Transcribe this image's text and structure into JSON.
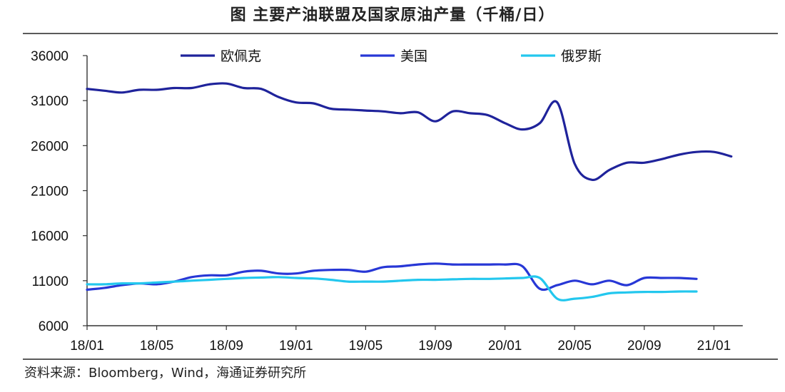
{
  "header": {
    "title": "图  主要产油联盟及国家原油产量（千桶/日）"
  },
  "footer": {
    "source": "资料来源：Bloomberg，Wind，海通证券研究所"
  },
  "chart_data": {
    "type": "line",
    "title": "图  主要产油联盟及国家原油产量（千桶/日）",
    "xlabel": "",
    "ylabel": "",
    "ylim": [
      6000,
      36000
    ],
    "yticks": [
      6000,
      11000,
      16000,
      21000,
      26000,
      31000,
      36000
    ],
    "x_tick_labels": [
      "18/01",
      "18/05",
      "18/09",
      "19/01",
      "19/05",
      "19/09",
      "20/01",
      "20/05",
      "20/09",
      "21/01"
    ],
    "x_start": "18/01",
    "x_end": "21/02",
    "grid": false,
    "legend_position": "top",
    "colors": {
      "欧佩克": "#1f239b",
      "美国": "#2737d6",
      "俄罗斯": "#23c7ee"
    },
    "series": [
      {
        "name": "欧佩克",
        "x": [
          "18/01",
          "18/02",
          "18/03",
          "18/04",
          "18/05",
          "18/06",
          "18/07",
          "18/08",
          "18/09",
          "18/10",
          "18/11",
          "18/12",
          "19/01",
          "19/02",
          "19/03",
          "19/04",
          "19/05",
          "19/06",
          "19/07",
          "19/08",
          "19/09",
          "19/10",
          "19/11",
          "19/12",
          "20/01",
          "20/02",
          "20/03",
          "20/04",
          "20/05",
          "20/06",
          "20/07",
          "20/08",
          "20/09",
          "20/10",
          "20/11",
          "20/12",
          "21/01",
          "21/02"
        ],
        "values": [
          32300,
          32100,
          31900,
          32200,
          32200,
          32400,
          32400,
          32800,
          32900,
          32400,
          32300,
          31400,
          30800,
          30700,
          30100,
          30000,
          29900,
          29800,
          29600,
          29700,
          28700,
          29800,
          29600,
          29400,
          28500,
          27800,
          28500,
          30800,
          24000,
          22200,
          23300,
          24100,
          24100,
          24500,
          25000,
          25300,
          25300,
          24800
        ]
      },
      {
        "name": "美国",
        "x": [
          "18/01",
          "18/02",
          "18/03",
          "18/04",
          "18/05",
          "18/06",
          "18/07",
          "18/08",
          "18/09",
          "18/10",
          "18/11",
          "18/12",
          "19/01",
          "19/02",
          "19/03",
          "19/04",
          "19/05",
          "19/06",
          "19/07",
          "19/08",
          "19/09",
          "19/10",
          "19/11",
          "19/12",
          "20/01",
          "20/02",
          "20/03",
          "20/04",
          "20/05",
          "20/06",
          "20/07",
          "20/08",
          "20/09",
          "20/10",
          "20/11",
          "20/12"
        ],
        "values": [
          10000,
          10200,
          10500,
          10700,
          10600,
          10900,
          11400,
          11600,
          11600,
          12000,
          12100,
          11800,
          11800,
          12100,
          12200,
          12200,
          12000,
          12500,
          12600,
          12800,
          12900,
          12800,
          12800,
          12800,
          12800,
          12600,
          10100,
          10500,
          11000,
          10600,
          11000,
          10500,
          11300,
          11300,
          11300,
          11200
        ]
      },
      {
        "name": "俄罗斯",
        "x": [
          "18/01",
          "18/02",
          "18/03",
          "18/04",
          "18/05",
          "18/06",
          "18/07",
          "18/08",
          "18/09",
          "18/10",
          "18/11",
          "18/12",
          "19/01",
          "19/02",
          "19/03",
          "19/04",
          "19/05",
          "19/06",
          "19/07",
          "19/08",
          "19/09",
          "19/10",
          "19/11",
          "19/12",
          "20/01",
          "20/02",
          "20/03",
          "20/04",
          "20/05",
          "20/06",
          "20/07",
          "20/08",
          "20/09",
          "20/10",
          "20/11",
          "20/12"
        ],
        "values": [
          10600,
          10600,
          10700,
          10700,
          10800,
          10900,
          11000,
          11100,
          11200,
          11300,
          11350,
          11400,
          11300,
          11250,
          11100,
          10900,
          10900,
          10900,
          11000,
          11100,
          11100,
          11150,
          11200,
          11200,
          11250,
          11300,
          11300,
          9000,
          9000,
          9200,
          9600,
          9700,
          9750,
          9750,
          9800,
          9800
        ]
      }
    ]
  }
}
